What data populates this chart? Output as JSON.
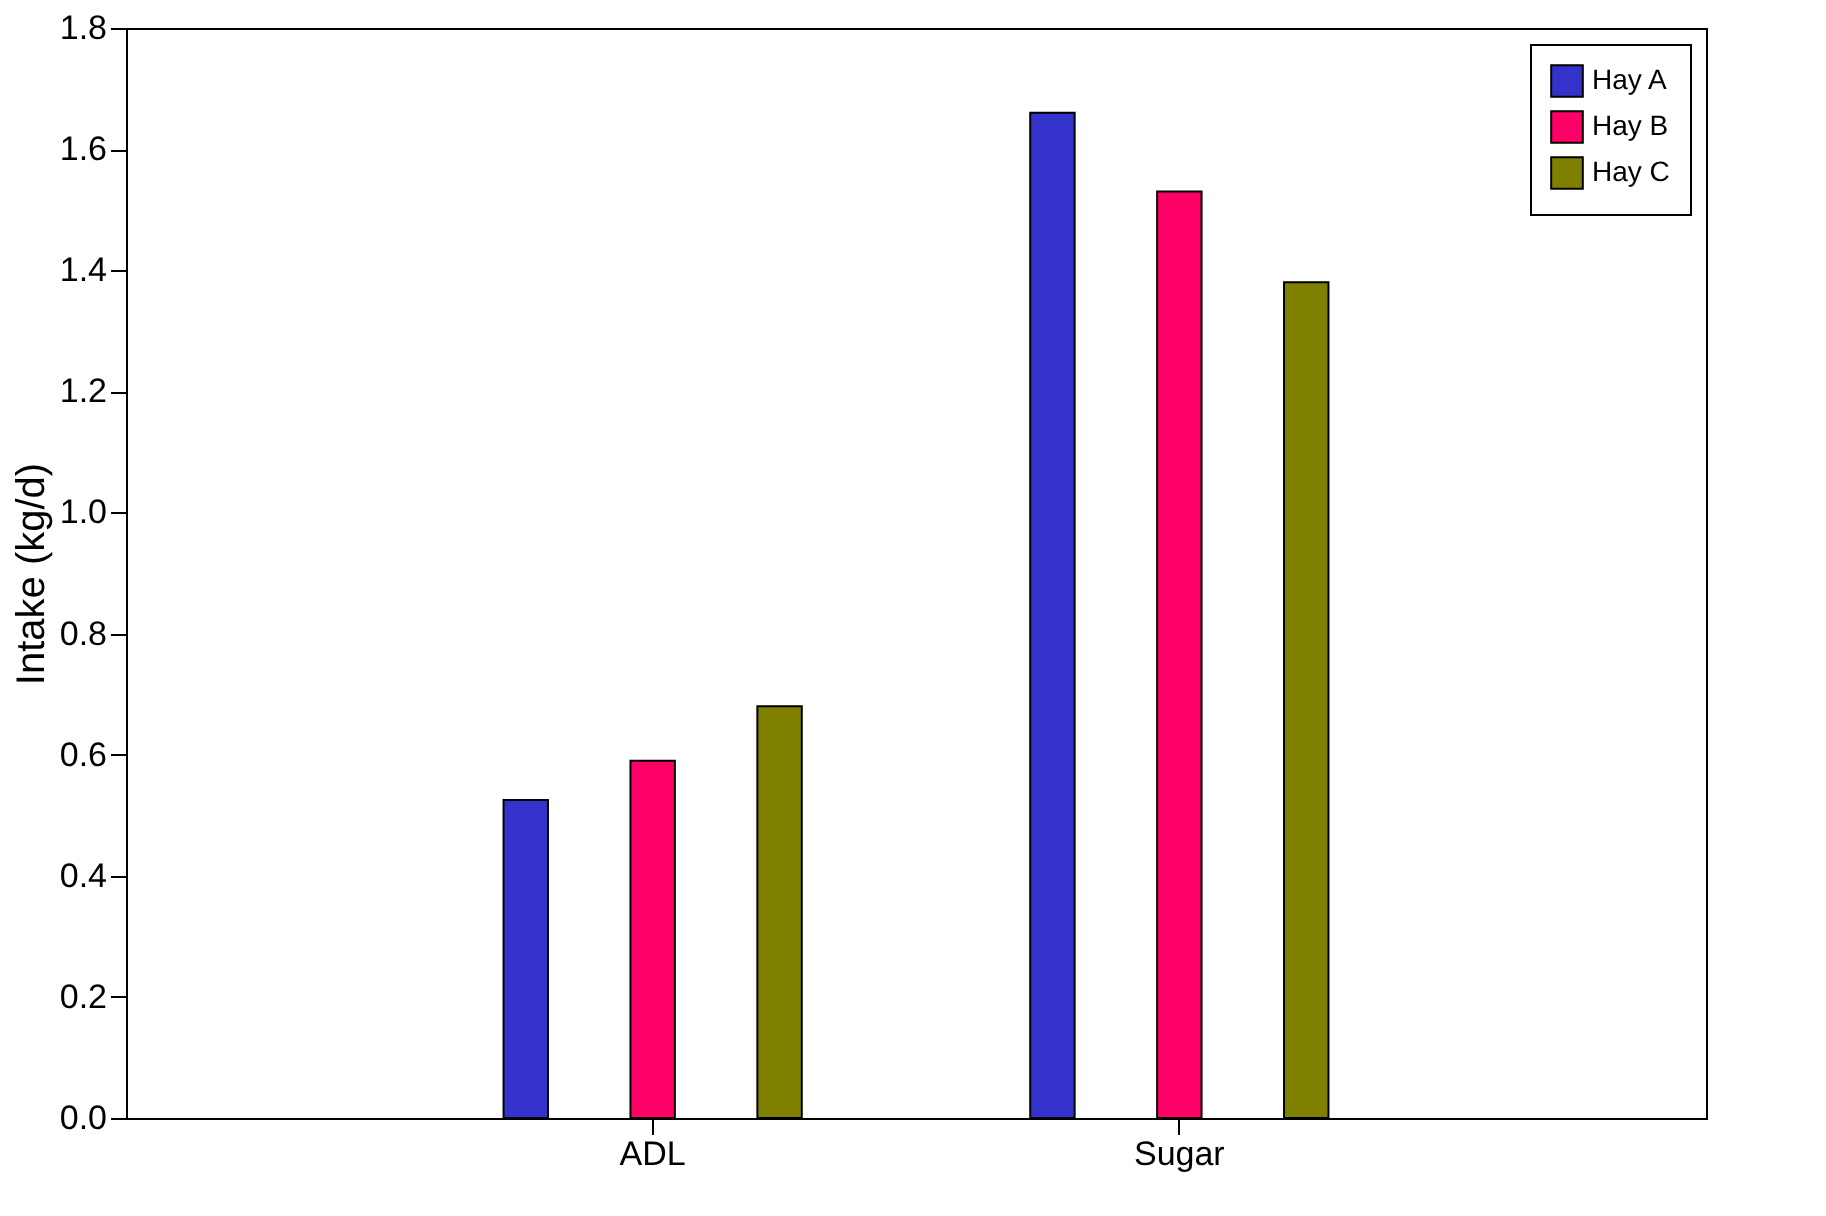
{
  "chart_data": {
    "type": "bar",
    "ylabel": "Intake (kg/d)",
    "categories": [
      "ADL",
      "Sugar"
    ],
    "series": [
      {
        "name": "Hay A",
        "color": "#3333cc",
        "values": [
          0.525,
          1.66
        ]
      },
      {
        "name": "Hay B",
        "color": "#ff0066",
        "values": [
          0.59,
          1.53
        ]
      },
      {
        "name": "Hay C",
        "color": "#808000",
        "values": [
          0.68,
          1.38
        ]
      }
    ],
    "ylim": [
      0,
      1.8
    ],
    "yticks": [
      {
        "value": 0,
        "label": "0.0"
      },
      0.2,
      0.4,
      0.6,
      0.8,
      {
        "value": 1,
        "label": "1.0"
      },
      1.2,
      1.4,
      1.6,
      1.8
    ],
    "grid": false,
    "legend": "top right"
  }
}
